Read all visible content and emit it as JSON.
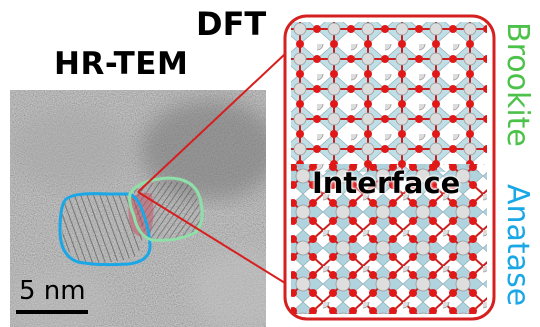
{
  "labels": {
    "hrtem": "HR-TEM",
    "dft": "DFT",
    "interface": "Interface",
    "brookite": "Brookite",
    "anatase": "Anatase",
    "scale": "5 nm"
  },
  "colors": {
    "brookite": "#4cc24a",
    "anatase": "#1aa7e6",
    "frame": "#d61f1f",
    "oxygen": "#e02020",
    "titanium": "#d8d8d8",
    "octahedra": "#a9d4df"
  }
}
